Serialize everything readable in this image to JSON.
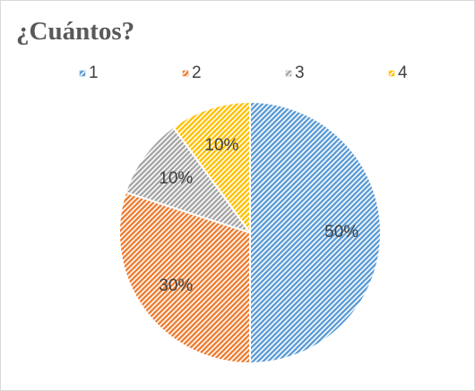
{
  "chart_data": {
    "type": "pie",
    "title": "¿Cuántos?",
    "categories": [
      "1",
      "2",
      "3",
      "4"
    ],
    "values": [
      50,
      30,
      10,
      10
    ],
    "value_labels": [
      "50%",
      "30%",
      "10%",
      "10%"
    ],
    "colors": [
      "#5b9bd5",
      "#ed7d31",
      "#a5a5a5",
      "#ffc000"
    ],
    "legend": "top"
  }
}
